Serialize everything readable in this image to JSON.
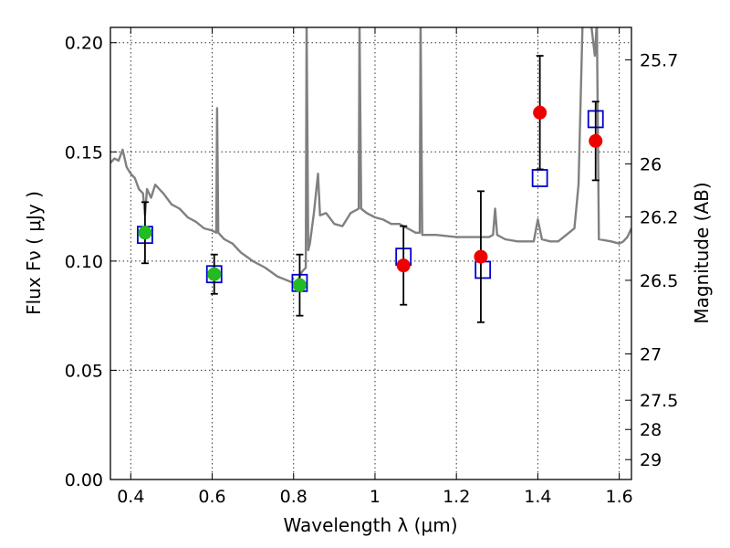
{
  "chart_data": {
    "type": "scatter",
    "title": "",
    "xlabel": "Wavelength  λ (μm)",
    "ylabel": "Flux  Fν  ( μJy )",
    "ylabel_right": "Magnitude (AB)",
    "xlim": [
      0.35,
      1.63
    ],
    "ylim": [
      0.0,
      0.207
    ],
    "x_ticks": [
      0.4,
      0.6,
      0.8,
      1.0,
      1.2,
      1.4,
      1.6
    ],
    "x_tick_labels": [
      "0.4",
      "0.6",
      "0.8",
      "1",
      "1.2",
      "1.4",
      "1.6"
    ],
    "y_ticks": [
      0.0,
      0.05,
      0.1,
      0.15,
      0.2
    ],
    "y_tick_labels": [
      "0.00",
      "0.05",
      "0.10",
      "0.15",
      "0.20"
    ],
    "right_ticks": [
      {
        "flux": 0.1921,
        "label": "25.7"
      },
      {
        "flux": 0.1445,
        "label": "26"
      },
      {
        "flux": 0.1202,
        "label": "26.2"
      },
      {
        "flux": 0.0912,
        "label": "26.5"
      },
      {
        "flux": 0.0575,
        "label": "27"
      },
      {
        "flux": 0.0363,
        "label": "27.5"
      },
      {
        "flux": 0.0229,
        "label": "28"
      },
      {
        "flux": 0.0091,
        "label": "29"
      }
    ],
    "grid": true,
    "colors": {
      "model": "#808080",
      "model_points": "#0000cc",
      "observed_red": "#ee0000",
      "observed_green": "#22bb22",
      "errorbar": "#000000"
    },
    "series": [
      {
        "kind": "line",
        "points": [
          [
            0.35,
            0.145
          ],
          [
            0.36,
            0.147
          ],
          [
            0.37,
            0.146
          ],
          [
            0.38,
            0.151
          ],
          [
            0.385,
            0.147
          ],
          [
            0.39,
            0.143
          ],
          [
            0.4,
            0.14
          ],
          [
            0.41,
            0.138
          ],
          [
            0.42,
            0.133
          ],
          [
            0.43,
            0.131
          ],
          [
            0.435,
            0.121
          ],
          [
            0.44,
            0.133
          ],
          [
            0.45,
            0.129
          ],
          [
            0.46,
            0.135
          ],
          [
            0.47,
            0.133
          ],
          [
            0.48,
            0.131
          ],
          [
            0.5,
            0.126
          ],
          [
            0.52,
            0.124
          ],
          [
            0.54,
            0.12
          ],
          [
            0.56,
            0.118
          ],
          [
            0.58,
            0.115
          ],
          [
            0.6,
            0.114
          ],
          [
            0.61,
            0.113
          ],
          [
            0.612,
            0.17
          ],
          [
            0.615,
            0.113
          ],
          [
            0.63,
            0.11
          ],
          [
            0.65,
            0.108
          ],
          [
            0.67,
            0.104
          ],
          [
            0.7,
            0.1
          ],
          [
            0.73,
            0.097
          ],
          [
            0.76,
            0.093
          ],
          [
            0.8,
            0.09
          ],
          [
            0.81,
            0.091
          ],
          [
            0.82,
            0.095
          ],
          [
            0.83,
            0.097
          ],
          [
            0.832,
            0.21
          ],
          [
            0.836,
            0.105
          ],
          [
            0.84,
            0.108
          ],
          [
            0.85,
            0.122
          ],
          [
            0.86,
            0.14
          ],
          [
            0.865,
            0.121
          ],
          [
            0.88,
            0.122
          ],
          [
            0.9,
            0.117
          ],
          [
            0.92,
            0.116
          ],
          [
            0.94,
            0.122
          ],
          [
            0.96,
            0.124
          ],
          [
            0.962,
            0.21
          ],
          [
            0.966,
            0.124
          ],
          [
            0.98,
            0.122
          ],
          [
            1.0,
            0.12
          ],
          [
            1.02,
            0.119
          ],
          [
            1.04,
            0.117
          ],
          [
            1.06,
            0.117
          ],
          [
            1.08,
            0.115
          ],
          [
            1.1,
            0.113
          ],
          [
            1.11,
            0.113
          ],
          [
            1.112,
            0.21
          ],
          [
            1.116,
            0.112
          ],
          [
            1.12,
            0.112
          ],
          [
            1.15,
            0.112
          ],
          [
            1.2,
            0.111
          ],
          [
            1.25,
            0.111
          ],
          [
            1.28,
            0.111
          ],
          [
            1.29,
            0.112
          ],
          [
            1.295,
            0.124
          ],
          [
            1.3,
            0.112
          ],
          [
            1.32,
            0.11
          ],
          [
            1.35,
            0.109
          ],
          [
            1.37,
            0.109
          ],
          [
            1.39,
            0.109
          ],
          [
            1.4,
            0.119
          ],
          [
            1.41,
            0.11
          ],
          [
            1.43,
            0.109
          ],
          [
            1.45,
            0.109
          ],
          [
            1.47,
            0.112
          ],
          [
            1.49,
            0.115
          ],
          [
            1.5,
            0.135
          ],
          [
            1.51,
            0.21
          ],
          [
            1.53,
            0.21
          ],
          [
            1.54,
            0.194
          ],
          [
            1.545,
            0.21
          ],
          [
            1.55,
            0.11
          ],
          [
            1.58,
            0.109
          ],
          [
            1.6,
            0.108
          ],
          [
            1.61,
            0.109
          ],
          [
            1.62,
            0.111
          ],
          [
            1.63,
            0.115
          ]
        ]
      },
      {
        "kind": "square",
        "points": [
          [
            0.435,
            0.112
          ],
          [
            0.605,
            0.094
          ],
          [
            0.815,
            0.09
          ],
          [
            1.07,
            0.102
          ],
          [
            1.265,
            0.096
          ],
          [
            1.405,
            0.138
          ],
          [
            1.542,
            0.165
          ]
        ]
      },
      {
        "kind": "circle-errorbar",
        "points": [
          {
            "x": 0.435,
            "y": 0.113,
            "err": 0.014,
            "color": "green"
          },
          {
            "x": 0.605,
            "y": 0.094,
            "err": 0.009,
            "color": "green"
          },
          {
            "x": 0.815,
            "y": 0.089,
            "err": 0.014,
            "color": "green"
          },
          {
            "x": 1.07,
            "y": 0.098,
            "err": 0.018,
            "color": "red"
          },
          {
            "x": 1.26,
            "y": 0.102,
            "err": 0.03,
            "color": "red"
          },
          {
            "x": 1.405,
            "y": 0.168,
            "err": 0.026,
            "color": "red"
          },
          {
            "x": 1.542,
            "y": 0.155,
            "err": 0.018,
            "color": "red"
          }
        ]
      }
    ]
  }
}
